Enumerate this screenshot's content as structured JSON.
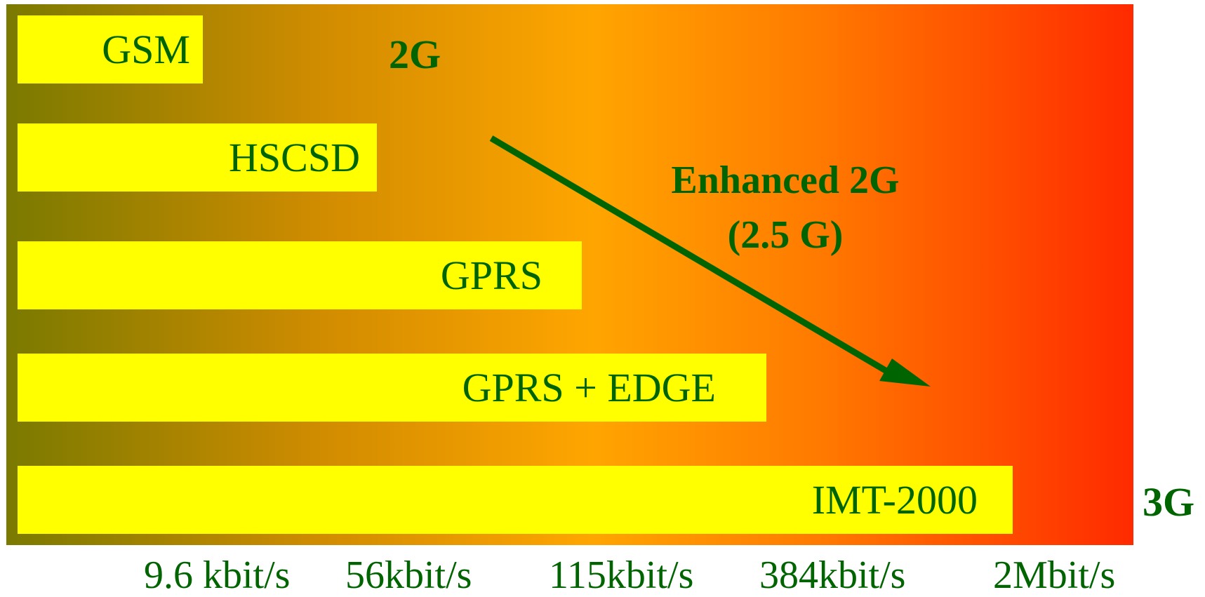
{
  "bars": [
    {
      "id": "gsm",
      "label": "GSM"
    },
    {
      "id": "hscsd",
      "label": "HSCSD"
    },
    {
      "id": "gprs",
      "label": "GPRS"
    },
    {
      "id": "gprs-edge",
      "label": "GPRS + EDGE"
    },
    {
      "id": "imt-2000",
      "label": "IMT-2000"
    }
  ],
  "generations": {
    "g2": "2G",
    "g3": "3G"
  },
  "enhanced": {
    "line1": "Enhanced 2G",
    "line2": "(2.5 G)"
  },
  "rates": [
    "9.6 kbit/s",
    "56kbit/s",
    "115kbit/s",
    "384kbit/s",
    "2Mbit/s"
  ],
  "colors": {
    "bar": "#ffff00",
    "text": "#006400",
    "gradient_start": "#7a7a00",
    "gradient_end": "#ff2a00"
  }
}
